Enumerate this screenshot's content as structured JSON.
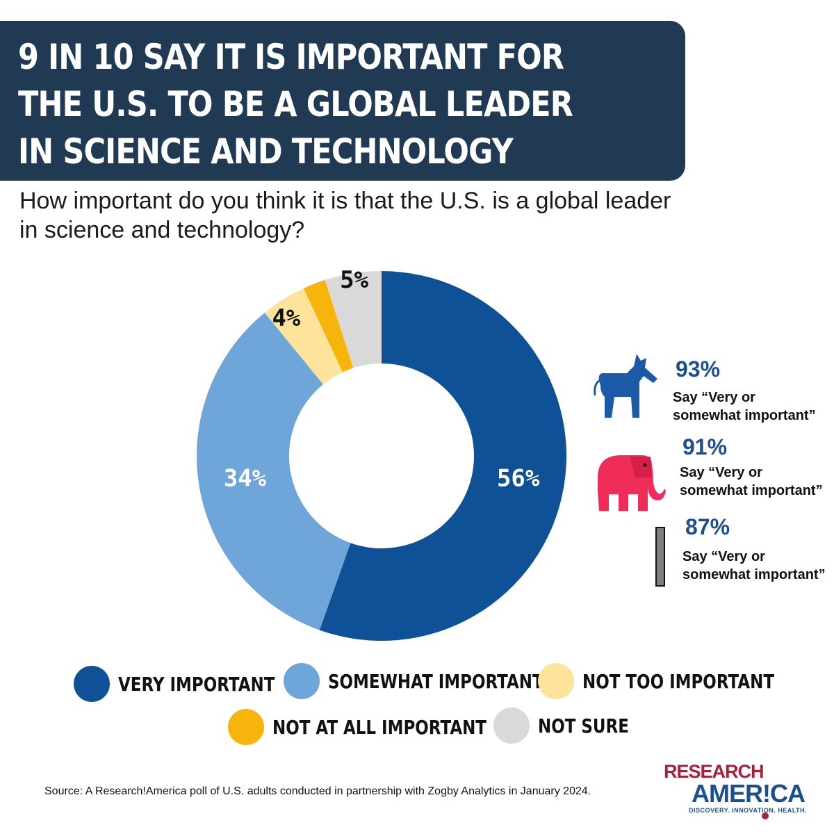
{
  "title": "9 IN 10 SAY IT IS IMPORTANT FOR THE U.S. TO BE A GLOBAL LEADER IN SCIENCE AND TECHNOLOGY",
  "question": "How important do you think it is that the U.S. is a global leader in science and technology?",
  "chart_data": {
    "type": "pie",
    "style": "donut",
    "categories": [
      "VERY IMPORTANT",
      "SOMEWHAT IMPORTANT",
      "NOT TOO IMPORTANT",
      "NOT AT ALL IMPORTANT",
      "NOT SURE"
    ],
    "values": [
      56,
      34,
      4,
      2,
      5
    ],
    "slice_labels": [
      "56%",
      "34%",
      "4%",
      "",
      "5%"
    ],
    "colors": [
      "#0f5196",
      "#6fa6da",
      "#fde49a",
      "#f7b50c",
      "#d9d9d9"
    ],
    "legend_placement": "bottom"
  },
  "legend": [
    {
      "label": "VERY IMPORTANT",
      "color": "#0f5196"
    },
    {
      "label": "SOMEWHAT IMPORTANT",
      "color": "#6fa6da"
    },
    {
      "label": "NOT TOO IMPORTANT",
      "color": "#fde49a"
    },
    {
      "label": "NOT AT ALL IMPORTANT",
      "color": "#f7b50c"
    },
    {
      "label": "NOT SURE",
      "color": "#d9d9d9"
    }
  ],
  "party_breakdown": [
    {
      "icon": "donkey-icon",
      "pct": "93%",
      "note": "Say “Very or somewhat important”",
      "color": "#0f5196"
    },
    {
      "icon": "elephant-icon",
      "pct": "91%",
      "note": "Say “Very or somewhat important”",
      "color": "#ef2d58"
    },
    {
      "icon": "independent-bar-icon",
      "pct": "87%",
      "note": "Say “Very or somewhat important”",
      "color": "#7f7f7f"
    }
  ],
  "source": "Source:  A Research!America poll of U.S. adults conducted in partnership with Zogby Analytics in January 2024.",
  "logo": {
    "line1": "RESEARCH",
    "line2": "AMER!CA",
    "tagline": "DISCOVERY. INNOVATION. HEALTH."
  }
}
